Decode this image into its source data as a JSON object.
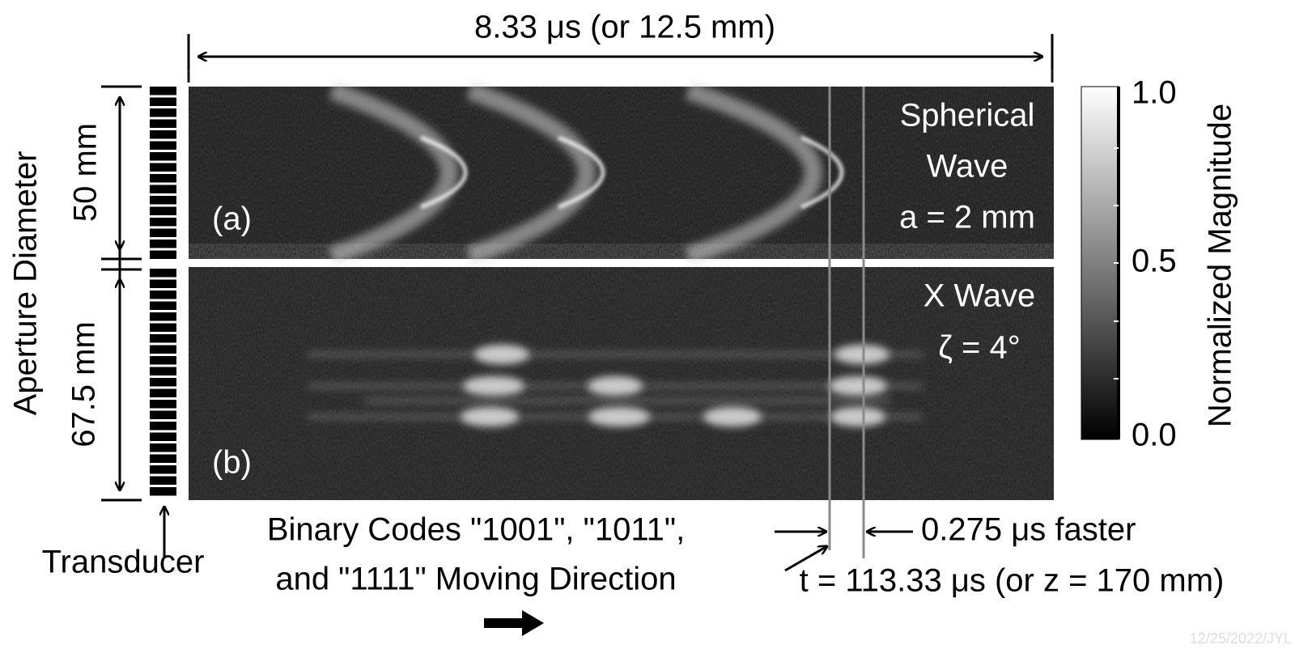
{
  "top_dimension": "8.33 μs (or 12.5 mm)",
  "side_label": "Aperture Diameter",
  "panel_a": {
    "height": "50 mm",
    "label": "(a)",
    "title_lines": [
      "Spherical",
      "Wave",
      "a = 2 mm"
    ]
  },
  "panel_b": {
    "height": "67.5 mm",
    "label": "(b)",
    "title_lines": [
      "X Wave",
      "ζ = 4°"
    ]
  },
  "colorbar": {
    "title": "Normalized Magnitude",
    "ticks": [
      "1.0",
      "0.5",
      "0.0"
    ]
  },
  "transducer_label": "Transducer",
  "codes_caption": [
    "Binary Codes \"1001\", \"1011\",",
    "and \"1111\" Moving Direction"
  ],
  "shift_label": "0.275 μs faster",
  "time_label": "t = 113.33 μs (or z = 170 mm)",
  "watermark": "12/25/2022/JYL"
}
